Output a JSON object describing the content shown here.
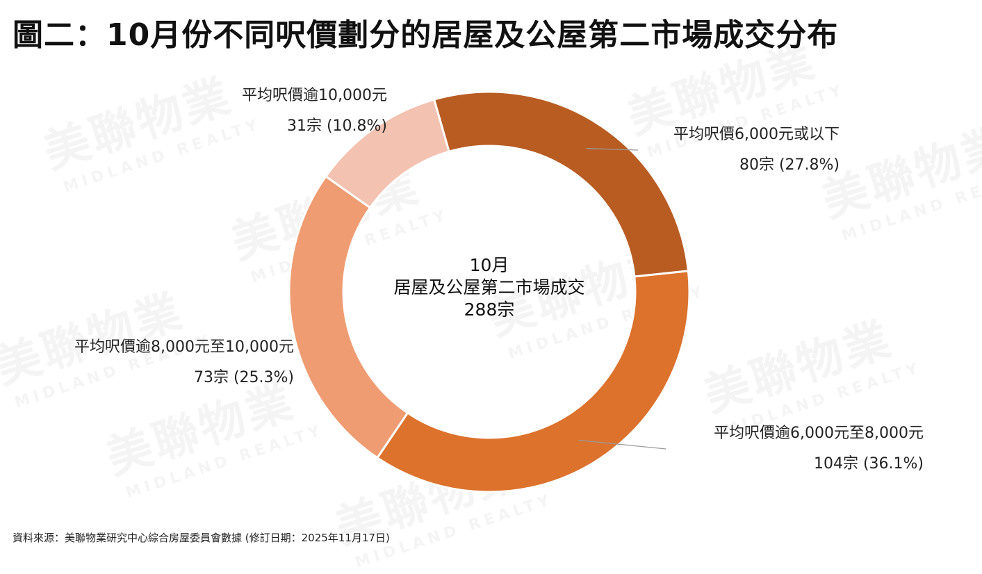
{
  "title": "圖二：10月份不同呎價劃分的居屋及公屋第二市場成交分布",
  "watermark": {
    "cn": "美聯物業",
    "en": "MIDLAND REALTY"
  },
  "center": {
    "line1": "10月",
    "line2": "居屋及公屋第二市場成交",
    "line3": "288宗"
  },
  "labels": [
    {
      "name": "平均呎價6,000元或以下",
      "value": "80宗 (27.8%)"
    },
    {
      "name": "平均呎價逾6,000元至8,000元",
      "value": "104宗 (36.1%)"
    },
    {
      "name": "平均呎價逾8,000元至10,000元",
      "value": "73宗 (25.3%)"
    },
    {
      "name": "平均呎價逾10,000元",
      "value": "31宗 (10.8%)"
    }
  ],
  "source": "資料來源：美聯物業研究中心綜合房屋委員會數據 (修訂日期：2025年11月17日)",
  "chart_data": {
    "type": "pie",
    "donut": true,
    "categories": [
      "平均呎價6,000元或以下",
      "平均呎價逾6,000元至8,000元",
      "平均呎價逾8,000元至10,000元",
      "平均呎價逾10,000元"
    ],
    "values": [
      80,
      104,
      73,
      31
    ],
    "percentages": [
      27.8,
      36.1,
      25.3,
      10.8
    ],
    "total": 288,
    "colors": [
      "#b85c22",
      "#dc722c",
      "#ef9c72",
      "#f3c2b0"
    ],
    "title": "圖二：10月份不同呎價劃分的居屋及公屋第二市場成交分布",
    "legend": "none"
  }
}
